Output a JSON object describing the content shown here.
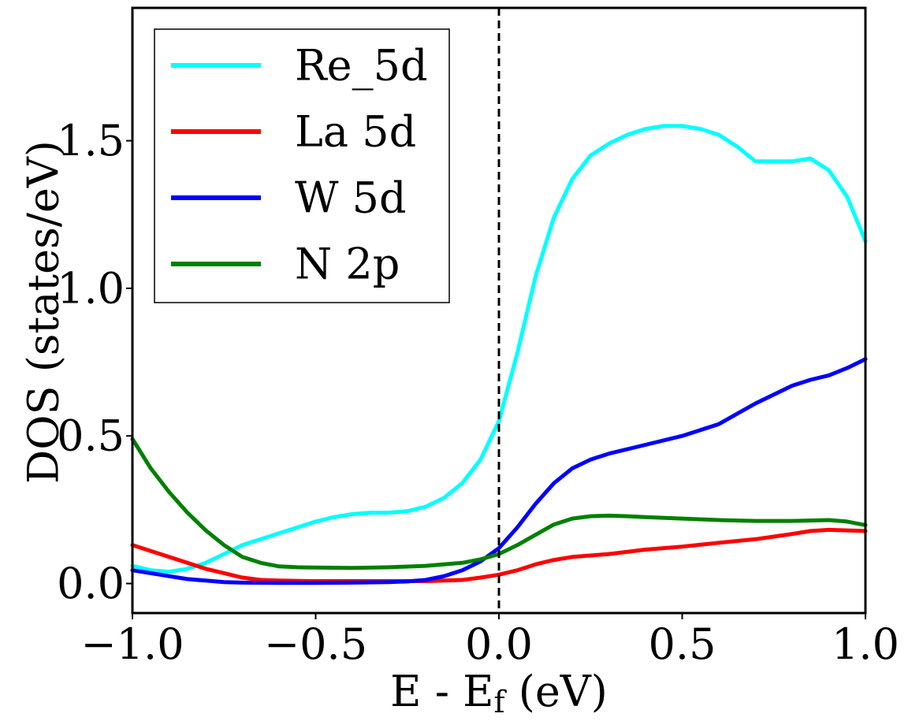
{
  "chart_data": {
    "type": "line",
    "title": "",
    "xlabel": "E - E",
    "xlabel_subscript": "f",
    "xlabel_units": " (eV)",
    "ylabel": "DOS (states/eV)",
    "xlim": [
      -1.0,
      1.0
    ],
    "ylim": [
      -0.1,
      1.95
    ],
    "xticks": [
      -1.0,
      -0.5,
      0.0,
      0.5,
      1.0
    ],
    "xtick_labels": [
      "−1.0",
      "−0.5",
      "0.0",
      "0.5",
      "1.0"
    ],
    "yticks": [
      0.0,
      0.5,
      1.0,
      1.5
    ],
    "ytick_labels": [
      "0.0",
      "0.5",
      "1.0",
      "1.5"
    ],
    "grid": false,
    "legend_position": "top-left",
    "reference_line": {
      "x": 0.0,
      "style": "dashed",
      "color": "#000000"
    },
    "series": [
      {
        "name": "Re_5d",
        "color": "#00ffff",
        "x": [
          -1.0,
          -0.95,
          -0.9,
          -0.85,
          -0.8,
          -0.75,
          -0.7,
          -0.6,
          -0.5,
          -0.45,
          -0.4,
          -0.35,
          -0.3,
          -0.25,
          -0.2,
          -0.15,
          -0.1,
          -0.05,
          0.0,
          0.05,
          0.1,
          0.15,
          0.2,
          0.25,
          0.3,
          0.35,
          0.4,
          0.45,
          0.5,
          0.55,
          0.6,
          0.65,
          0.7,
          0.75,
          0.8,
          0.85,
          0.9,
          0.95,
          1.0
        ],
        "y": [
          0.06,
          0.045,
          0.04,
          0.05,
          0.07,
          0.1,
          0.13,
          0.17,
          0.21,
          0.225,
          0.235,
          0.24,
          0.24,
          0.245,
          0.26,
          0.29,
          0.34,
          0.42,
          0.55,
          0.78,
          1.04,
          1.24,
          1.37,
          1.45,
          1.49,
          1.52,
          1.54,
          1.55,
          1.55,
          1.54,
          1.52,
          1.48,
          1.43,
          1.43,
          1.43,
          1.44,
          1.4,
          1.31,
          1.16
        ]
      },
      {
        "name": "La 5d",
        "color": "#ff0000",
        "x": [
          -1.0,
          -0.95,
          -0.9,
          -0.85,
          -0.8,
          -0.75,
          -0.7,
          -0.65,
          -0.6,
          -0.5,
          -0.4,
          -0.3,
          -0.2,
          -0.1,
          -0.05,
          0.0,
          0.05,
          0.1,
          0.15,
          0.2,
          0.3,
          0.4,
          0.5,
          0.6,
          0.7,
          0.8,
          0.85,
          0.9,
          0.95,
          1.0
        ],
        "y": [
          0.13,
          0.11,
          0.09,
          0.07,
          0.05,
          0.035,
          0.02,
          0.012,
          0.01,
          0.008,
          0.008,
          0.008,
          0.008,
          0.012,
          0.02,
          0.03,
          0.045,
          0.065,
          0.08,
          0.09,
          0.1,
          0.115,
          0.125,
          0.138,
          0.15,
          0.168,
          0.178,
          0.182,
          0.18,
          0.178
        ]
      },
      {
        "name": "W 5d",
        "color": "#0000ff",
        "x": [
          -1.0,
          -0.95,
          -0.9,
          -0.85,
          -0.8,
          -0.75,
          -0.7,
          -0.6,
          -0.5,
          -0.4,
          -0.3,
          -0.25,
          -0.2,
          -0.15,
          -0.1,
          -0.05,
          0.0,
          0.05,
          0.1,
          0.15,
          0.2,
          0.25,
          0.3,
          0.4,
          0.5,
          0.55,
          0.6,
          0.7,
          0.8,
          0.85,
          0.9,
          0.95,
          1.0
        ],
        "y": [
          0.045,
          0.035,
          0.025,
          0.015,
          0.01,
          0.005,
          0.003,
          0.002,
          0.002,
          0.003,
          0.005,
          0.007,
          0.012,
          0.025,
          0.045,
          0.075,
          0.12,
          0.19,
          0.27,
          0.34,
          0.39,
          0.42,
          0.44,
          0.47,
          0.5,
          0.52,
          0.54,
          0.61,
          0.67,
          0.69,
          0.705,
          0.73,
          0.76
        ]
      },
      {
        "name": "N 2p",
        "color": "#008000",
        "x": [
          -1.0,
          -0.95,
          -0.9,
          -0.85,
          -0.8,
          -0.75,
          -0.7,
          -0.65,
          -0.6,
          -0.55,
          -0.5,
          -0.4,
          -0.3,
          -0.2,
          -0.1,
          -0.05,
          0.0,
          0.05,
          0.1,
          0.15,
          0.2,
          0.25,
          0.3,
          0.35,
          0.4,
          0.5,
          0.6,
          0.7,
          0.8,
          0.9,
          0.95,
          1.0
        ],
        "y": [
          0.49,
          0.39,
          0.31,
          0.24,
          0.18,
          0.13,
          0.09,
          0.07,
          0.058,
          0.055,
          0.054,
          0.053,
          0.055,
          0.06,
          0.07,
          0.082,
          0.1,
          0.13,
          0.165,
          0.2,
          0.22,
          0.228,
          0.23,
          0.228,
          0.225,
          0.22,
          0.215,
          0.212,
          0.212,
          0.215,
          0.21,
          0.198
        ]
      }
    ]
  }
}
